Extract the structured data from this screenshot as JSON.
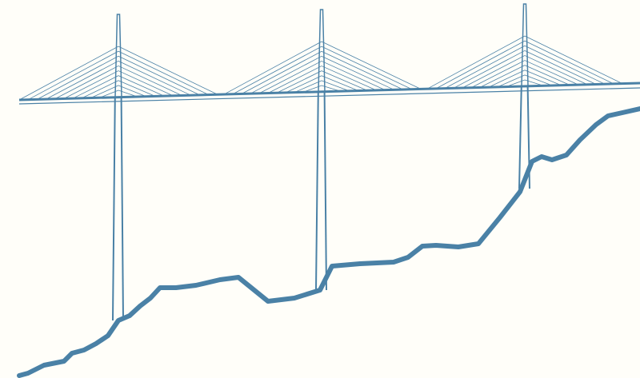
{
  "colors": {
    "background": "#fffef9",
    "line": "#4a81a6"
  },
  "icons": {
    "illustration": "cable-stayed-bridge-over-terrain"
  }
}
